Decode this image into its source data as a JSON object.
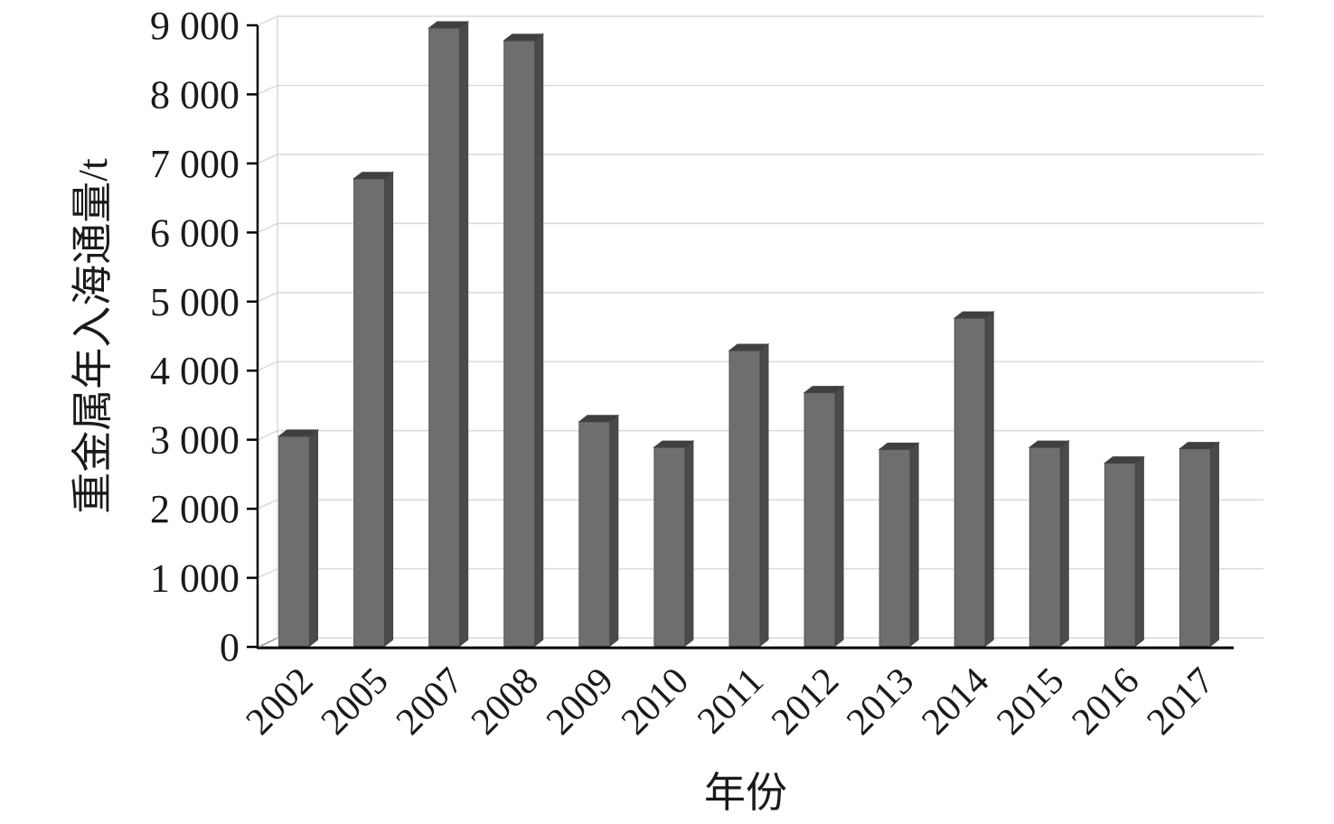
{
  "chart_data": {
    "type": "bar",
    "title": "",
    "xlabel": "年份",
    "ylabel": "重金属年入海通量/t",
    "ylim": [
      0,
      9000
    ],
    "y_ticks": [
      0,
      1000,
      2000,
      3000,
      4000,
      5000,
      6000,
      7000,
      8000,
      9000
    ],
    "y_tick_labels": [
      "0",
      "1 000",
      "2 000",
      "3 000",
      "4 000",
      "5 000",
      "6 000",
      "7 000",
      "8 000",
      "9 000"
    ],
    "grid": true,
    "style": "3d-column",
    "bar_color": "#6e6e6e",
    "categories": [
      "2002",
      "2005",
      "2007",
      "2008",
      "2009",
      "2010",
      "2011",
      "2012",
      "2013",
      "2014",
      "2015",
      "2016",
      "2017"
    ],
    "values": [
      3050,
      6780,
      8960,
      8780,
      3260,
      2890,
      4290,
      3680,
      2860,
      4760,
      2890,
      2660,
      2870
    ]
  }
}
